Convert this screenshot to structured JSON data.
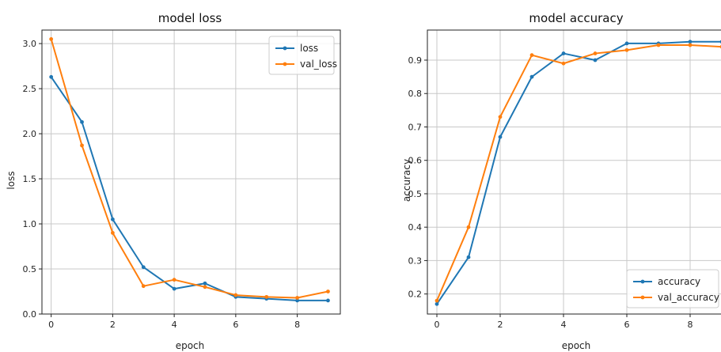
{
  "colors": {
    "series1": "#1f77b4",
    "series2": "#ff7f0e",
    "grid": "#c8c8c8",
    "axis": "#222222"
  },
  "chart_data": [
    {
      "type": "line",
      "title": "model loss",
      "xlabel": "epoch",
      "ylabel": "loss",
      "x": [
        0,
        1,
        2,
        3,
        4,
        5,
        6,
        7,
        8,
        9
      ],
      "xlim": [
        -0.3,
        9.4
      ],
      "ylim": [
        0.0,
        3.15
      ],
      "xticks": [
        0,
        2,
        4,
        6,
        8
      ],
      "xtick_labels": [
        "0",
        "2",
        "4",
        "6",
        "8"
      ],
      "yticks": [
        0.0,
        0.5,
        1.0,
        1.5,
        2.0,
        2.5,
        3.0
      ],
      "ytick_labels": [
        "0.0",
        "0.5",
        "1.0",
        "1.5",
        "2.0",
        "2.5",
        "3.0"
      ],
      "grid": true,
      "legend_position": "top-right",
      "series": [
        {
          "name": "loss",
          "color": "#1f77b4",
          "values": [
            2.63,
            2.13,
            1.05,
            0.52,
            0.28,
            0.34,
            0.19,
            0.17,
            0.15,
            0.15
          ]
        },
        {
          "name": "val_loss",
          "color": "#ff7f0e",
          "values": [
            3.05,
            1.87,
            0.9,
            0.31,
            0.38,
            0.3,
            0.21,
            0.19,
            0.18,
            0.25
          ]
        }
      ]
    },
    {
      "type": "line",
      "title": "model accuracy",
      "xlabel": "epoch",
      "ylabel": "accuracy",
      "x": [
        0,
        1,
        2,
        3,
        4,
        5,
        6,
        7,
        8,
        9
      ],
      "xlim": [
        -0.3,
        9.1
      ],
      "ylim": [
        0.14,
        0.99
      ],
      "xticks": [
        0,
        2,
        4,
        6,
        8
      ],
      "xtick_labels": [
        "0",
        "2",
        "4",
        "6",
        "8"
      ],
      "yticks": [
        0.2,
        0.3,
        0.4,
        0.5,
        0.6,
        0.7,
        0.8,
        0.9
      ],
      "ytick_labels": [
        "0.2",
        "0.3",
        "0.4",
        "0.5",
        "0.6",
        "0.7",
        "0.8",
        "0.9"
      ],
      "grid": true,
      "legend_position": "bottom-right",
      "series": [
        {
          "name": "accuracy",
          "color": "#1f77b4",
          "values": [
            0.17,
            0.31,
            0.67,
            0.85,
            0.92,
            0.9,
            0.95,
            0.95,
            0.955,
            0.955
          ]
        },
        {
          "name": "val_accuracy",
          "color": "#ff7f0e",
          "values": [
            0.18,
            0.4,
            0.73,
            0.915,
            0.89,
            0.92,
            0.93,
            0.945,
            0.945,
            0.94
          ]
        }
      ]
    }
  ]
}
